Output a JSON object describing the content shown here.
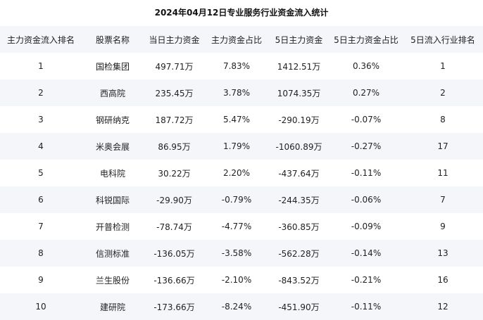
{
  "title": "2024年04月12日专业服务行业资金流入统计",
  "columns": [
    "主力资金流入排名",
    "股票名称",
    "当日主力资金",
    "主力资金占比",
    "5日主力资金",
    "5日主力资金占比",
    "5日流入行业排名"
  ],
  "rows": [
    [
      "1",
      "国检集团",
      "497.71万",
      "7.83%",
      "1412.51万",
      "0.36%",
      "1"
    ],
    [
      "2",
      "西高院",
      "235.45万",
      "3.78%",
      "1074.35万",
      "0.27%",
      "2"
    ],
    [
      "3",
      "钢研纳克",
      "187.72万",
      "5.47%",
      "-290.19万",
      "-0.07%",
      "8"
    ],
    [
      "4",
      "米奥会展",
      "86.95万",
      "1.79%",
      "-1060.89万",
      "-0.27%",
      "17"
    ],
    [
      "5",
      "电科院",
      "30.22万",
      "2.20%",
      "-437.64万",
      "-0.11%",
      "11"
    ],
    [
      "6",
      "科锐国际",
      "-29.90万",
      "-0.79%",
      "-244.35万",
      "-0.06%",
      "7"
    ],
    [
      "7",
      "开普检测",
      "-78.74万",
      "-4.77%",
      "-360.85万",
      "-0.09%",
      "9"
    ],
    [
      "8",
      "信测标准",
      "-136.05万",
      "-3.58%",
      "-562.28万",
      "-0.14%",
      "13"
    ],
    [
      "9",
      "兰生股份",
      "-136.66万",
      "-2.10%",
      "-843.52万",
      "-0.21%",
      "16"
    ],
    [
      "10",
      "建研院",
      "-173.66万",
      "-8.24%",
      "-451.90万",
      "-0.11%",
      "12"
    ]
  ]
}
